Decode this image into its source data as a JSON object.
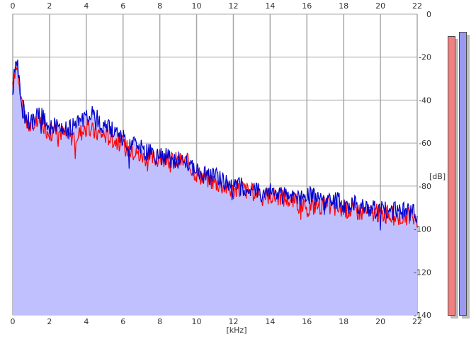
{
  "chart_data": {
    "type": "area",
    "xlabel": "[kHz]",
    "ylabel": "[dB]",
    "xlim": [
      0,
      22
    ],
    "ylim": [
      -140,
      0
    ],
    "x_ticks": [
      0,
      2,
      4,
      6,
      8,
      10,
      12,
      14,
      16,
      18,
      20,
      22
    ],
    "y_ticks": [
      0,
      -20,
      -40,
      -60,
      -80,
      -100,
      -120,
      -140
    ],
    "grid": true,
    "series": [
      {
        "color": "#ff0000",
        "x": [
          0.0,
          0.1,
          0.2,
          0.3,
          0.5,
          0.7,
          1.0,
          1.5,
          2.0,
          2.5,
          3.0,
          3.5,
          4.0,
          4.5,
          5.0,
          5.5,
          6.0,
          6.5,
          7.0,
          7.5,
          8.0,
          8.5,
          9.0,
          9.5,
          10.0,
          10.5,
          11.0,
          11.5,
          12.0,
          12.5,
          13.0,
          13.5,
          14.0,
          14.5,
          15.0,
          15.5,
          16.0,
          16.5,
          17.0,
          17.5,
          18.0,
          18.5,
          19.0,
          19.5,
          20.0,
          20.5,
          21.0,
          21.5,
          22.0
        ],
        "values": [
          -35,
          -30,
          -22,
          -28,
          -40,
          -52,
          -52,
          -50,
          -55,
          -54,
          -57,
          -56,
          -53,
          -55,
          -56,
          -58,
          -61,
          -64,
          -66,
          -67,
          -67,
          -68,
          -68,
          -69,
          -74,
          -76,
          -78,
          -80,
          -82,
          -81,
          -83,
          -84,
          -84,
          -85,
          -86,
          -88,
          -90,
          -89,
          -89,
          -90,
          -91,
          -91,
          -92,
          -92,
          -93,
          -93,
          -94,
          -94,
          -95
        ]
      },
      {
        "color": "#0000cc",
        "x": [
          0.0,
          0.1,
          0.2,
          0.3,
          0.5,
          0.7,
          1.0,
          1.5,
          2.0,
          2.5,
          3.0,
          3.5,
          4.0,
          4.5,
          5.0,
          5.5,
          6.0,
          6.5,
          7.0,
          7.5,
          8.0,
          8.5,
          9.0,
          9.5,
          10.0,
          10.5,
          11.0,
          11.5,
          12.0,
          12.5,
          13.0,
          13.5,
          14.0,
          14.5,
          15.0,
          15.5,
          16.0,
          16.5,
          17.0,
          17.5,
          18.0,
          18.5,
          19.0,
          19.5,
          20.0,
          20.5,
          21.0,
          21.5,
          22.0
        ],
        "values": [
          -36,
          -28,
          -18,
          -25,
          -42,
          -48,
          -50,
          -47,
          -52,
          -51,
          -54,
          -52,
          -46,
          -48,
          -52,
          -55,
          -58,
          -61,
          -63,
          -65,
          -66,
          -67,
          -68,
          -68,
          -73,
          -75,
          -76,
          -77,
          -80,
          -80,
          -82,
          -83,
          -83,
          -84,
          -85,
          -85,
          -84,
          -85,
          -86,
          -87,
          -88,
          -89,
          -89,
          -90,
          -90,
          -91,
          -92,
          -92,
          -93
        ]
      }
    ]
  },
  "meters": {
    "left_color": "#f08080",
    "right_color": "#9999f2",
    "left_level": 0.915,
    "right_level": 0.93
  }
}
